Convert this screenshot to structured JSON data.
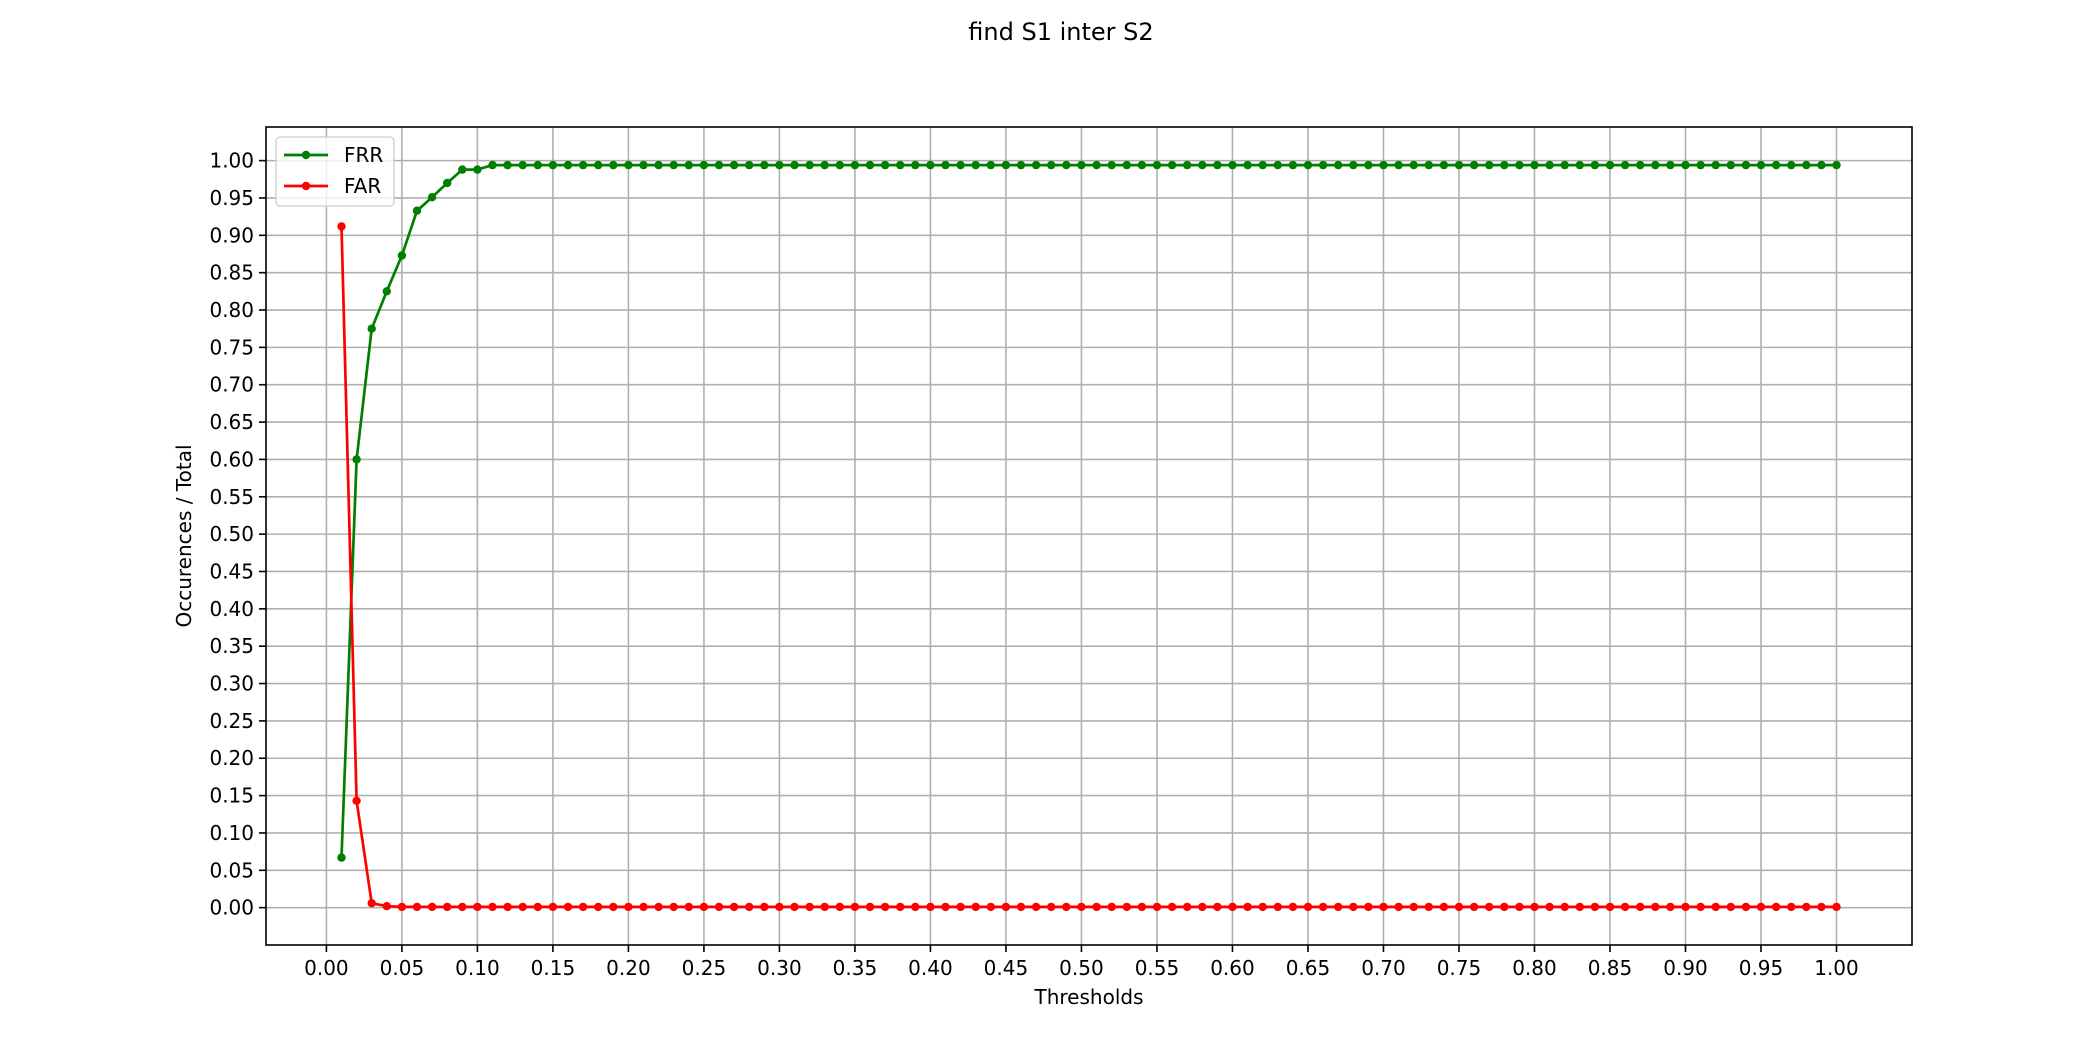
{
  "chart_data": {
    "type": "line",
    "title": "find S1 inter S2",
    "xlabel": "Thresholds",
    "ylabel": "Occurences / Total",
    "xlim": [
      -0.04,
      1.05
    ],
    "ylim": [
      -0.05,
      1.045
    ],
    "grid": true,
    "legend": "top-left",
    "xticks": [
      "0.00",
      "0.05",
      "0.10",
      "0.15",
      "0.20",
      "0.25",
      "0.30",
      "0.35",
      "0.40",
      "0.45",
      "0.50",
      "0.55",
      "0.60",
      "0.65",
      "0.70",
      "0.75",
      "0.80",
      "0.85",
      "0.90",
      "0.95",
      "1.00"
    ],
    "yticks": [
      "0.00",
      "0.05",
      "0.10",
      "0.15",
      "0.20",
      "0.25",
      "0.30",
      "0.35",
      "0.40",
      "0.45",
      "0.50",
      "0.55",
      "0.60",
      "0.65",
      "0.70",
      "0.75",
      "0.80",
      "0.85",
      "0.90",
      "0.95",
      "1.00"
    ],
    "x": [
      0.01,
      0.02,
      0.03,
      0.04,
      0.05,
      0.06,
      0.07,
      0.08,
      0.09,
      0.1,
      0.11,
      0.12,
      0.13,
      0.14,
      0.15,
      0.16,
      0.17,
      0.18,
      0.19,
      0.2,
      0.21,
      0.22,
      0.23,
      0.24,
      0.25,
      0.26,
      0.27,
      0.28,
      0.29,
      0.3,
      0.31,
      0.32,
      0.33,
      0.34,
      0.35,
      0.36,
      0.37,
      0.38,
      0.39,
      0.4,
      0.41,
      0.42,
      0.43,
      0.44,
      0.45,
      0.46,
      0.47,
      0.48,
      0.49,
      0.5,
      0.51,
      0.52,
      0.53,
      0.54,
      0.55,
      0.56,
      0.57,
      0.58,
      0.59,
      0.6,
      0.61,
      0.62,
      0.63,
      0.64,
      0.65,
      0.66,
      0.67,
      0.68,
      0.69,
      0.7,
      0.71,
      0.72,
      0.73,
      0.74,
      0.75,
      0.76,
      0.77,
      0.78,
      0.79,
      0.8,
      0.81,
      0.82,
      0.83,
      0.84,
      0.85,
      0.86,
      0.87,
      0.88,
      0.89,
      0.9,
      0.91,
      0.92,
      0.93,
      0.94,
      0.95,
      0.96,
      0.97,
      0.98,
      0.99,
      1.0
    ],
    "series": [
      {
        "name": "FRR",
        "color": "#008000",
        "values": [
          0.067,
          0.6,
          0.775,
          0.825,
          0.873,
          0.933,
          0.951,
          0.97,
          0.988,
          0.988,
          0.994,
          0.994,
          0.994,
          0.994,
          0.994,
          0.994,
          0.994,
          0.994,
          0.994,
          0.994,
          0.994,
          0.994,
          0.994,
          0.994,
          0.994,
          0.994,
          0.994,
          0.994,
          0.994,
          0.994,
          0.994,
          0.994,
          0.994,
          0.994,
          0.994,
          0.994,
          0.994,
          0.994,
          0.994,
          0.994,
          0.994,
          0.994,
          0.994,
          0.994,
          0.994,
          0.994,
          0.994,
          0.994,
          0.994,
          0.994,
          0.994,
          0.994,
          0.994,
          0.994,
          0.994,
          0.994,
          0.994,
          0.994,
          0.994,
          0.994,
          0.994,
          0.994,
          0.994,
          0.994,
          0.994,
          0.994,
          0.994,
          0.994,
          0.994,
          0.994,
          0.994,
          0.994,
          0.994,
          0.994,
          0.994,
          0.994,
          0.994,
          0.994,
          0.994,
          0.994,
          0.994,
          0.994,
          0.994,
          0.994,
          0.994,
          0.994,
          0.994,
          0.994,
          0.994,
          0.994,
          0.994,
          0.994,
          0.994,
          0.994,
          0.994,
          0.994,
          0.994,
          0.994,
          0.994,
          0.994
        ]
      },
      {
        "name": "FAR",
        "color": "#ff0000",
        "values": [
          0.912,
          0.143,
          0.006,
          0.002,
          0.001,
          0.001,
          0.001,
          0.001,
          0.001,
          0.001,
          0.001,
          0.001,
          0.001,
          0.001,
          0.001,
          0.001,
          0.001,
          0.001,
          0.001,
          0.001,
          0.001,
          0.001,
          0.001,
          0.001,
          0.001,
          0.001,
          0.001,
          0.001,
          0.001,
          0.001,
          0.001,
          0.001,
          0.001,
          0.001,
          0.001,
          0.001,
          0.001,
          0.001,
          0.001,
          0.001,
          0.001,
          0.001,
          0.001,
          0.001,
          0.001,
          0.001,
          0.001,
          0.001,
          0.001,
          0.001,
          0.001,
          0.001,
          0.001,
          0.001,
          0.001,
          0.001,
          0.001,
          0.001,
          0.001,
          0.001,
          0.001,
          0.001,
          0.001,
          0.001,
          0.001,
          0.001,
          0.001,
          0.001,
          0.001,
          0.001,
          0.001,
          0.001,
          0.001,
          0.001,
          0.001,
          0.001,
          0.001,
          0.001,
          0.001,
          0.001,
          0.001,
          0.001,
          0.001,
          0.001,
          0.001,
          0.001,
          0.001,
          0.001,
          0.001,
          0.001,
          0.001,
          0.001,
          0.001,
          0.001,
          0.001,
          0.001,
          0.001,
          0.001,
          0.001,
          0.001
        ]
      }
    ]
  }
}
